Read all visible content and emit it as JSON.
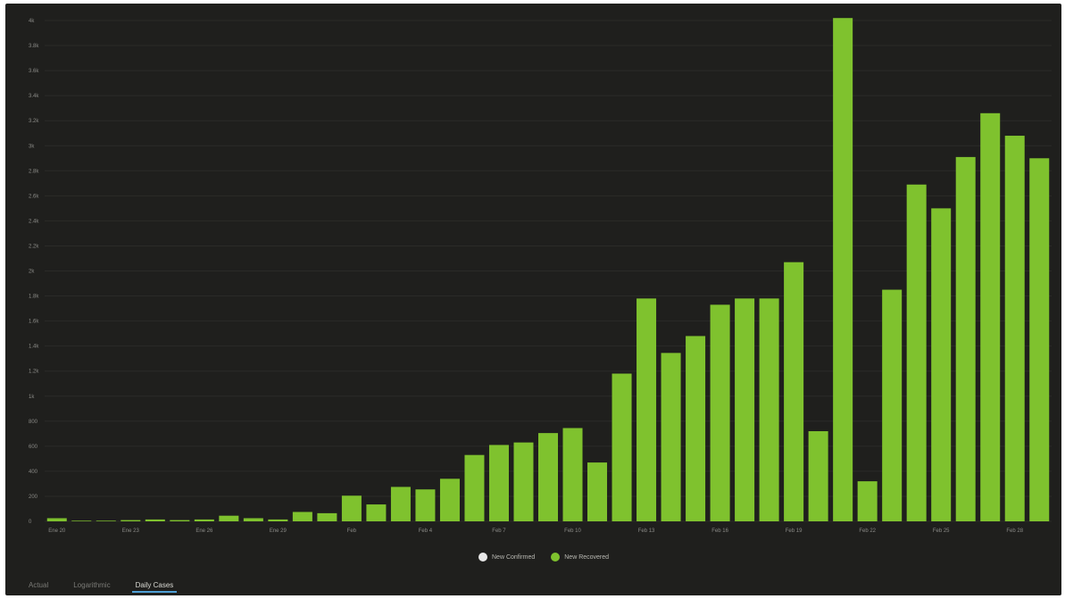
{
  "colors": {
    "background": "#1f1f1d",
    "recovered": "#7fc22e",
    "confirmed": "#e8e8e8"
  },
  "tabs": [
    {
      "label": "Actual",
      "active": false
    },
    {
      "label": "Logarithmic",
      "active": false
    },
    {
      "label": "Daily Cases",
      "active": true
    }
  ],
  "legend": [
    {
      "label": "New Confirmed",
      "color": "#e8e8e8"
    },
    {
      "label": "New Recovered",
      "color": "#7fc22e"
    }
  ],
  "chart_data": {
    "type": "bar",
    "x_tick_labels": [
      "Ene 20",
      "Ene 23",
      "Ene 26",
      "Ene 29",
      "Feb",
      "Feb 4",
      "Feb 7",
      "Feb 10",
      "Feb 13",
      "Feb 16",
      "Feb 19",
      "Feb 22",
      "Feb 25",
      "Feb 28"
    ],
    "y_ticks": [
      0,
      200,
      400,
      600,
      800,
      1000,
      1200,
      1400,
      1600,
      1800,
      2000,
      2200,
      2400,
      2600,
      2800,
      3000,
      3200,
      3400,
      3600,
      3800,
      4000
    ],
    "y_tick_labels": [
      "0",
      "200",
      "400",
      "600",
      "800",
      "1k",
      "1.2k",
      "1.4k",
      "1.6k",
      "1.8k",
      "2k",
      "2.2k",
      "2.4k",
      "2.6k",
      "2.8k",
      "3k",
      "3.2k",
      "3.4k",
      "3.6k",
      "3.8k",
      "4k"
    ],
    "ylim": [
      0,
      4050
    ],
    "grid": true,
    "legend_position": "bottom-center",
    "series": [
      {
        "name": "New Recovered",
        "values": [
          25,
          5,
          5,
          10,
          15,
          10,
          15,
          45,
          25,
          15,
          75,
          65,
          205,
          135,
          275,
          255,
          340,
          530,
          610,
          630,
          705,
          745,
          470,
          1180,
          1780,
          1345,
          1480,
          1730,
          1780,
          1780,
          2070,
          720,
          4020,
          320,
          1850,
          2690,
          2500,
          2910,
          3260,
          3080,
          2900
        ]
      }
    ]
  }
}
